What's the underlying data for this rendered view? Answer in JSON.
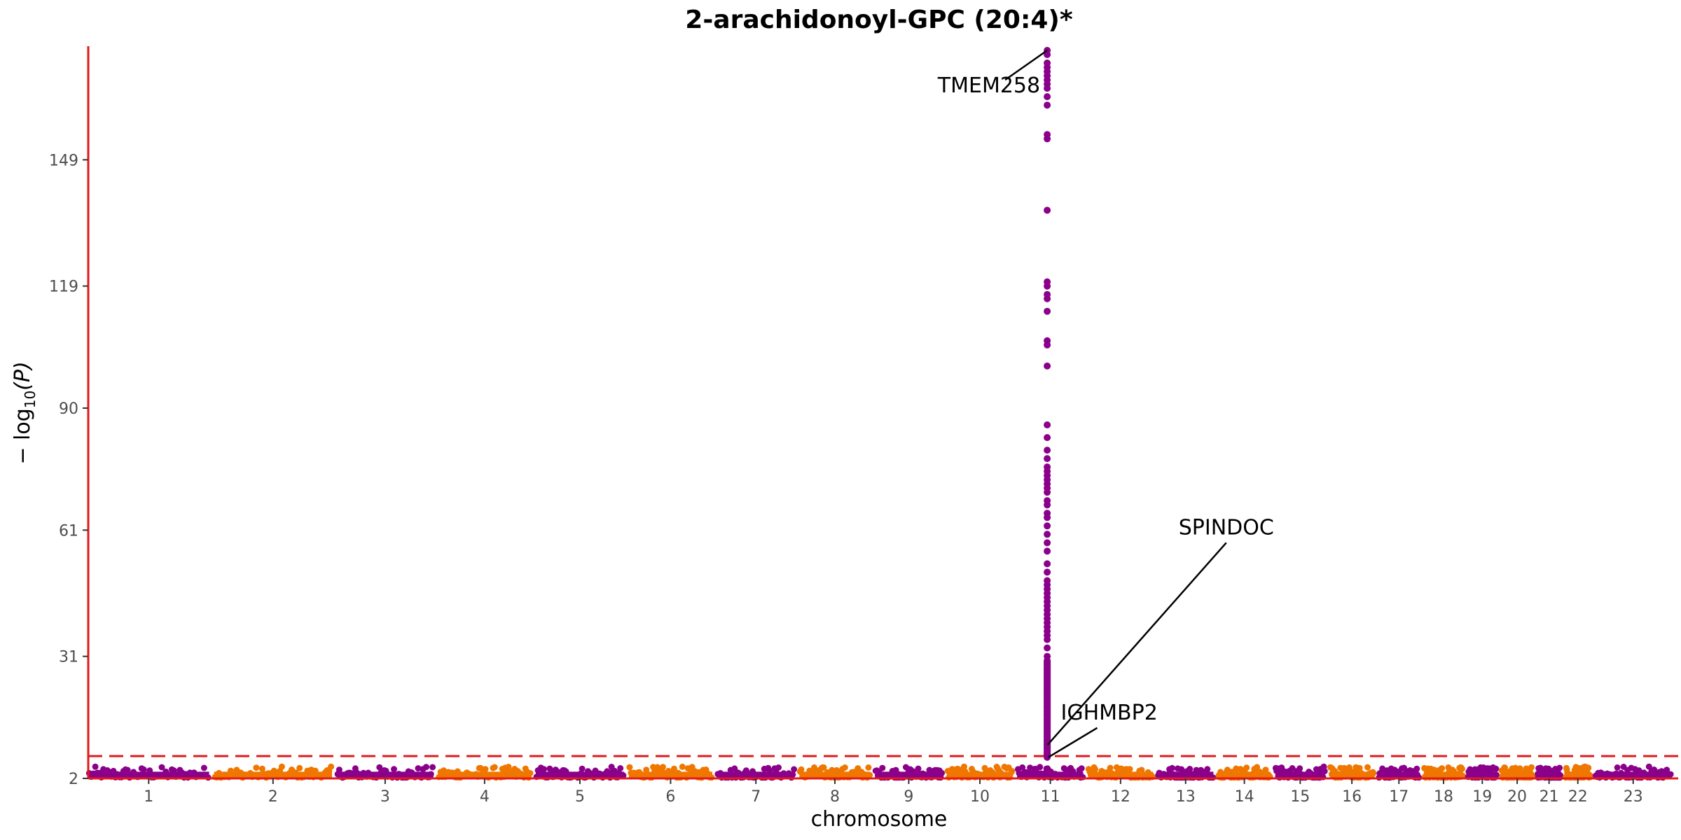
{
  "chart_data": {
    "type": "scatter",
    "title": "2-arachidonoyl-GPC (20:4)*",
    "xlabel": "chromosome",
    "ylabel_prefix": "− log",
    "ylabel_sub": "10",
    "ylabel_suffix": "(P)",
    "yticks": [
      2,
      31,
      61,
      90,
      119,
      149
    ],
    "ylim": [
      2,
      176
    ],
    "significance_threshold": 7.3,
    "chromosomes": [
      {
        "label": "1",
        "length": 248
      },
      {
        "label": "2",
        "length": 242
      },
      {
        "label": "3",
        "length": 198
      },
      {
        "label": "4",
        "length": 190
      },
      {
        "label": "5",
        "length": 181
      },
      {
        "label": "6",
        "length": 171
      },
      {
        "label": "7",
        "length": 159
      },
      {
        "label": "8",
        "length": 145
      },
      {
        "label": "9",
        "length": 138
      },
      {
        "label": "10",
        "length": 134
      },
      {
        "label": "11",
        "length": 135
      },
      {
        "label": "12",
        "length": 133
      },
      {
        "label": "13",
        "length": 114
      },
      {
        "label": "14",
        "length": 107
      },
      {
        "label": "15",
        "length": 102
      },
      {
        "label": "16",
        "length": 90
      },
      {
        "label": "17",
        "length": 83
      },
      {
        "label": "18",
        "length": 80
      },
      {
        "label": "19",
        "length": 59
      },
      {
        "label": "20",
        "length": 64
      },
      {
        "label": "21",
        "length": 47
      },
      {
        "label": "22",
        "length": 51
      },
      {
        "label": "23",
        "length": 156
      }
    ],
    "colors": {
      "odd": "#8b008b",
      "even": "#ef7700",
      "threshold": "#e31a1c",
      "axis": "#e31a1c",
      "annotation_line": "#000000"
    },
    "peak": {
      "chromosome": "11",
      "position_mb": 61,
      "values": [
        175,
        174,
        172,
        171,
        170,
        169,
        168,
        167,
        166,
        164,
        162,
        155,
        154,
        137,
        120,
        119,
        117,
        116,
        113,
        106,
        105,
        100,
        86,
        83,
        80,
        78,
        76,
        75,
        74,
        73,
        72,
        71,
        70,
        68,
        67,
        65,
        64,
        62,
        60,
        58,
        56,
        53,
        51,
        49,
        48,
        47,
        46,
        45,
        44,
        43,
        42,
        41,
        40,
        39,
        38,
        37,
        36,
        35,
        33,
        31,
        30,
        29,
        28,
        27,
        26,
        25,
        24,
        23,
        22,
        21,
        20,
        19,
        18,
        17,
        16,
        15,
        14,
        13,
        12,
        11,
        10,
        9,
        8,
        7
      ]
    },
    "annotations": [
      {
        "label": "TMEM258",
        "chromosome": "11",
        "position_mb": 61,
        "y": 175,
        "text_y": 165,
        "text_anchor": "end",
        "text_dx": -10
      },
      {
        "label": "SPINDOC",
        "chromosome": "11",
        "position_mb": 62,
        "y": 10,
        "text_y": 60,
        "text_anchor": "middle",
        "text_dx": 255
      },
      {
        "label": "IGHMBP2",
        "chromosome": "11",
        "position_mb": 63,
        "y": 7,
        "text_y": 16,
        "text_anchor": "start",
        "text_dx": 18
      }
    ],
    "background_points_per_chromosome": 60,
    "background_max": 4.6
  }
}
